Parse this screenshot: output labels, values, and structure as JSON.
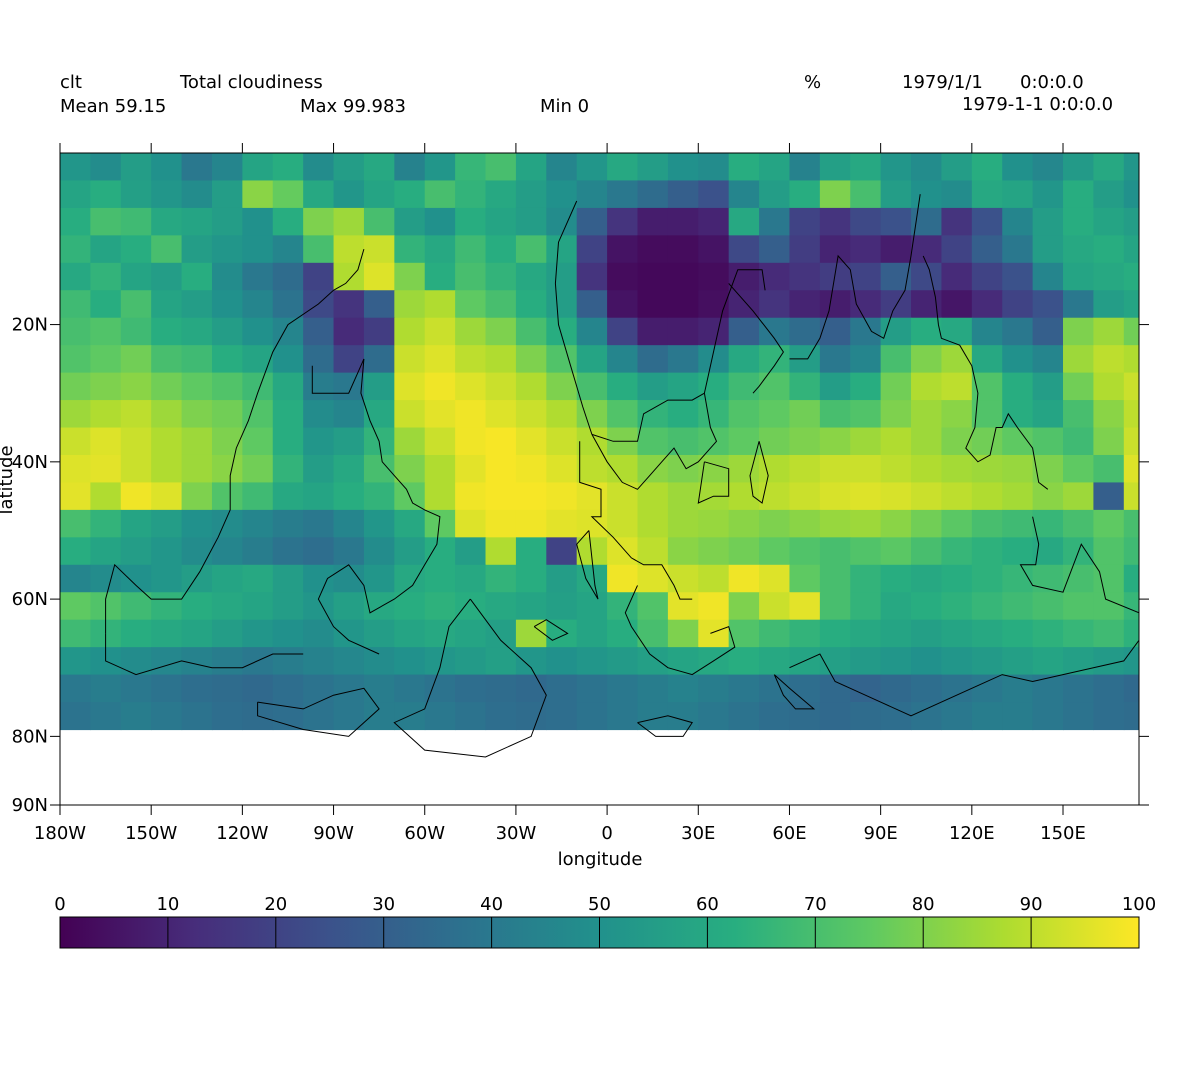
{
  "header": {
    "var_name": "clt",
    "long_name": "Total cloudiness",
    "units": "%",
    "date": "1979/1/1",
    "time": "0:0:0.0",
    "mean": "Mean 59.15",
    "max": "Max 99.983",
    "min": "Min 0",
    "datetime": "1979-1-1 0:0:0.0"
  },
  "chart_data": {
    "type": "heatmap",
    "xlabel": "longitude",
    "ylabel": "latitude",
    "xlim": [
      -180,
      175
    ],
    "ylim": [
      90,
      -5
    ],
    "x_ticks": [
      {
        "value": -180,
        "label": "180W"
      },
      {
        "value": -150,
        "label": "150W"
      },
      {
        "value": -120,
        "label": "120W"
      },
      {
        "value": -90,
        "label": "90W"
      },
      {
        "value": -60,
        "label": "60W"
      },
      {
        "value": -30,
        "label": "30W"
      },
      {
        "value": 0,
        "label": "0"
      },
      {
        "value": 30,
        "label": "30E"
      },
      {
        "value": 60,
        "label": "60E"
      },
      {
        "value": 90,
        "label": "90E"
      },
      {
        "value": 120,
        "label": "120E"
      },
      {
        "value": 150,
        "label": "150E"
      }
    ],
    "y_ticks": [
      {
        "value": 20,
        "label": "20N"
      },
      {
        "value": 40,
        "label": "40N"
      },
      {
        "value": 60,
        "label": "60N"
      },
      {
        "value": 80,
        "label": "80N"
      },
      {
        "value": 90,
        "label": "90N"
      }
    ],
    "colorbar": {
      "min": 0,
      "max": 100,
      "ticks": [
        "0",
        "10",
        "20",
        "30",
        "40",
        "50",
        "60",
        "70",
        "80",
        "90",
        "100"
      ],
      "colors": [
        "#440154",
        "#472d7b",
        "#3b528b",
        "#2c728e",
        "#21918c",
        "#28ae80",
        "#5ec962",
        "#addc30",
        "#fde725"
      ]
    },
    "dlon": 10,
    "dlat": 4,
    "lon_start": -180,
    "lat_start": -5,
    "grid": [
      [
        52,
        48,
        55,
        50,
        40,
        45,
        58,
        62,
        48,
        55,
        60,
        44,
        52,
        66,
        70,
        58,
        45,
        52,
        60,
        55,
        50,
        48,
        62,
        58,
        44,
        56,
        60,
        52,
        48,
        55,
        62,
        50,
        46,
        54,
        60,
        52
      ],
      [
        58,
        62,
        56,
        52,
        48,
        55,
        82,
        76,
        60,
        52,
        58,
        62,
        70,
        65,
        60,
        55,
        50,
        45,
        40,
        35,
        30,
        25,
        45,
        55,
        62,
        80,
        70,
        55,
        50,
        48,
        60,
        58,
        52,
        62,
        55,
        50
      ],
      [
        62,
        70,
        68,
        60,
        58,
        55,
        50,
        62,
        80,
        85,
        70,
        55,
        50,
        62,
        58,
        55,
        48,
        30,
        15,
        8,
        8,
        10,
        60,
        40,
        20,
        15,
        22,
        25,
        35,
        15,
        25,
        45,
        55,
        62,
        58,
        55
      ],
      [
        65,
        58,
        62,
        70,
        55,
        52,
        50,
        45,
        70,
        90,
        92,
        65,
        60,
        68,
        62,
        70,
        58,
        20,
        5,
        3,
        3,
        5,
        22,
        30,
        18,
        10,
        12,
        8,
        12,
        20,
        30,
        40,
        55,
        60,
        62,
        58
      ],
      [
        60,
        65,
        58,
        55,
        62,
        48,
        40,
        35,
        20,
        88,
        95,
        80,
        62,
        70,
        65,
        60,
        55,
        15,
        3,
        2,
        2,
        3,
        8,
        12,
        15,
        18,
        20,
        30,
        22,
        12,
        20,
        25,
        45,
        58,
        60,
        62
      ],
      [
        68,
        62,
        70,
        58,
        55,
        50,
        45,
        38,
        22,
        15,
        30,
        85,
        88,
        75,
        70,
        62,
        55,
        30,
        5,
        2,
        2,
        4,
        10,
        15,
        10,
        8,
        12,
        18,
        10,
        6,
        12,
        20,
        25,
        40,
        55,
        58
      ],
      [
        70,
        72,
        68,
        62,
        60,
        55,
        50,
        45,
        30,
        12,
        18,
        88,
        92,
        85,
        80,
        70,
        62,
        45,
        20,
        8,
        8,
        10,
        30,
        40,
        35,
        30,
        40,
        55,
        62,
        60,
        45,
        40,
        30,
        80,
        85,
        78
      ],
      [
        72,
        75,
        78,
        70,
        68,
        62,
        58,
        50,
        35,
        20,
        35,
        92,
        95,
        90,
        88,
        80,
        72,
        58,
        45,
        35,
        40,
        48,
        60,
        65,
        55,
        40,
        45,
        70,
        80,
        85,
        60,
        50,
        45,
        85,
        90,
        88
      ],
      [
        78,
        80,
        82,
        78,
        75,
        72,
        68,
        60,
        42,
        40,
        55,
        95,
        98,
        95,
        92,
        88,
        80,
        70,
        62,
        55,
        58,
        62,
        68,
        72,
        65,
        55,
        62,
        78,
        88,
        90,
        72,
        62,
        55,
        78,
        88,
        92
      ],
      [
        85,
        88,
        90,
        85,
        80,
        78,
        72,
        62,
        48,
        45,
        60,
        92,
        96,
        98,
        95,
        92,
        88,
        80,
        72,
        65,
        62,
        66,
        72,
        75,
        78,
        70,
        72,
        80,
        85,
        82,
        72,
        62,
        58,
        70,
        82,
        90
      ],
      [
        92,
        95,
        92,
        88,
        85,
        80,
        75,
        62,
        52,
        55,
        65,
        85,
        92,
        98,
        99,
        96,
        92,
        88,
        80,
        72,
        70,
        72,
        75,
        78,
        80,
        82,
        85,
        88,
        85,
        80,
        78,
        75,
        72,
        68,
        80,
        92
      ],
      [
        95,
        96,
        92,
        88,
        85,
        82,
        78,
        65,
        55,
        60,
        70,
        80,
        88,
        96,
        99,
        98,
        95,
        90,
        88,
        82,
        80,
        82,
        85,
        88,
        90,
        92,
        92,
        90,
        88,
        86,
        85,
        84,
        80,
        75,
        70,
        95
      ],
      [
        96,
        88,
        98,
        95,
        80,
        72,
        68,
        60,
        58,
        62,
        65,
        75,
        88,
        98,
        99,
        99,
        98,
        96,
        92,
        88,
        85,
        86,
        88,
        90,
        92,
        94,
        95,
        94,
        92,
        90,
        88,
        86,
        82,
        85,
        30,
        92
      ],
      [
        70,
        65,
        58,
        55,
        50,
        48,
        45,
        42,
        40,
        45,
        52,
        60,
        75,
        95,
        98,
        98,
        96,
        95,
        92,
        88,
        85,
        84,
        82,
        80,
        82,
        84,
        85,
        82,
        78,
        74,
        70,
        68,
        66,
        70,
        75,
        70
      ],
      [
        62,
        58,
        55,
        52,
        48,
        45,
        42,
        38,
        36,
        40,
        48,
        55,
        62,
        55,
        88,
        62,
        20,
        88,
        95,
        90,
        82,
        80,
        78,
        75,
        72,
        70,
        72,
        74,
        70,
        66,
        64,
        62,
        60,
        65,
        72,
        68
      ],
      [
        45,
        48,
        50,
        52,
        55,
        58,
        60,
        55,
        50,
        48,
        52,
        60,
        62,
        60,
        65,
        62,
        55,
        60,
        98,
        95,
        92,
        90,
        98,
        95,
        75,
        70,
        65,
        62,
        60,
        62,
        64,
        66,
        68,
        70,
        72,
        62
      ],
      [
        75,
        72,
        68,
        65,
        62,
        60,
        58,
        55,
        52,
        56,
        60,
        62,
        64,
        62,
        60,
        58,
        56,
        58,
        65,
        72,
        96,
        98,
        80,
        92,
        96,
        70,
        65,
        60,
        62,
        64,
        66,
        68,
        70,
        72,
        72,
        66
      ],
      [
        68,
        65,
        62,
        60,
        58,
        55,
        52,
        50,
        48,
        52,
        55,
        58,
        60,
        58,
        56,
        85,
        62,
        58,
        62,
        70,
        80,
        96,
        72,
        68,
        65,
        62,
        60,
        58,
        56,
        58,
        60,
        62,
        64,
        66,
        68,
        64
      ],
      [
        52,
        50,
        48,
        46,
        44,
        42,
        40,
        42,
        44,
        46,
        48,
        50,
        52,
        54,
        56,
        52,
        50,
        52,
        54,
        56,
        58,
        60,
        62,
        60,
        58,
        56,
        54,
        52,
        50,
        52,
        54,
        56,
        58,
        56,
        54,
        52
      ],
      [
        40,
        42,
        40,
        38,
        36,
        35,
        34,
        36,
        38,
        40,
        42,
        40,
        38,
        36,
        35,
        34,
        36,
        38,
        40,
        42,
        44,
        42,
        40,
        38,
        36,
        34,
        32,
        34,
        36,
        38,
        40,
        42,
        40,
        38,
        36,
        34
      ],
      [
        38,
        40,
        42,
        40,
        38,
        36,
        35,
        36,
        38,
        40,
        42,
        42,
        40,
        38,
        36,
        35,
        36,
        38,
        40,
        42,
        42,
        40,
        38,
        36,
        35,
        34,
        35,
        36,
        38,
        40,
        42,
        42,
        40,
        38,
        36,
        35
      ]
    ]
  }
}
